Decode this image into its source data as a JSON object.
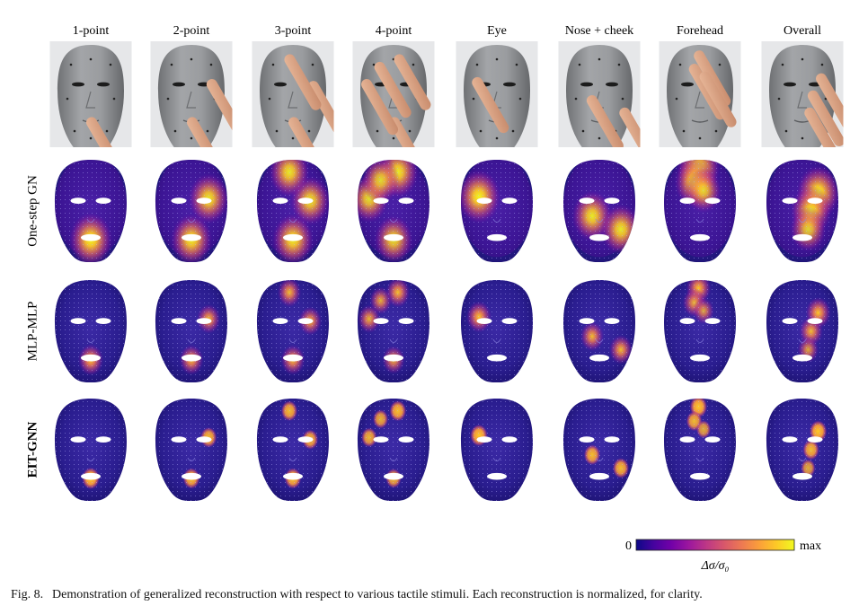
{
  "columns": [
    "1-point",
    "2-point",
    "3-point",
    "4-point",
    "Eye",
    "Nose + cheek",
    "Forehead",
    "Overall"
  ],
  "rows": [
    {
      "label": "One-step GN",
      "bold": false,
      "spot_style": "diffuse"
    },
    {
      "label": "MLP-MLP",
      "bold": false,
      "spot_style": "medium"
    },
    {
      "label": "EIT-GNN",
      "bold": true,
      "spot_style": "sharp"
    }
  ],
  "stimuli": [
    {
      "name": "1-point",
      "spots": [
        {
          "fx": 0.5,
          "fy": 0.78,
          "strength": 1.0
        }
      ]
    },
    {
      "name": "2-point",
      "spots": [
        {
          "fx": 0.5,
          "fy": 0.78,
          "strength": 0.9
        },
        {
          "fx": 0.74,
          "fy": 0.38,
          "strength": 0.85
        }
      ]
    },
    {
      "name": "3-point",
      "spots": [
        {
          "fx": 0.5,
          "fy": 0.78,
          "strength": 0.9
        },
        {
          "fx": 0.74,
          "fy": 0.4,
          "strength": 0.8
        },
        {
          "fx": 0.45,
          "fy": 0.12,
          "strength": 0.85
        }
      ]
    },
    {
      "name": "4-point",
      "spots": [
        {
          "fx": 0.5,
          "fy": 0.78,
          "strength": 0.75
        },
        {
          "fx": 0.16,
          "fy": 0.38,
          "strength": 0.75
        },
        {
          "fx": 0.56,
          "fy": 0.12,
          "strength": 0.9
        },
        {
          "fx": 0.32,
          "fy": 0.2,
          "strength": 0.7
        }
      ]
    },
    {
      "name": "Eye",
      "spots": [
        {
          "fx": 0.25,
          "fy": 0.36,
          "strength": 1.0
        }
      ]
    },
    {
      "name": "Nose + cheek",
      "spots": [
        {
          "fx": 0.4,
          "fy": 0.55,
          "strength": 0.85
        },
        {
          "fx": 0.8,
          "fy": 0.68,
          "strength": 0.85
        }
      ]
    },
    {
      "name": "Forehead",
      "spots": [
        {
          "fx": 0.48,
          "fy": 0.08,
          "strength": 1.0
        },
        {
          "fx": 0.42,
          "fy": 0.22,
          "strength": 0.8
        },
        {
          "fx": 0.55,
          "fy": 0.3,
          "strength": 0.6
        }
      ]
    },
    {
      "name": "Overall",
      "spots": [
        {
          "fx": 0.72,
          "fy": 0.32,
          "strength": 1.0
        },
        {
          "fx": 0.62,
          "fy": 0.5,
          "strength": 0.85
        },
        {
          "fx": 0.58,
          "fy": 0.68,
          "strength": 0.6
        }
      ]
    }
  ],
  "colorbar": {
    "min_label": "0",
    "max_label": "max",
    "quantity_label": "Δσ/σ₀",
    "colors": [
      "#0d0887",
      "#46039f",
      "#7201a8",
      "#9c179e",
      "#bd3786",
      "#d8576b",
      "#ed7953",
      "#fb9f3a",
      "#fdca26",
      "#f0f921"
    ]
  },
  "caption": {
    "figure_number": "Fig. 8.",
    "text": "Demonstration of generalized reconstruction with respect to various tactile stimuli. Each reconstruction is normalized, for clarity."
  },
  "colors": {
    "photo_background": "#e6e7e9",
    "mask_gray": "#8c8e91",
    "skin": "#d9a384",
    "face_base": "#2a1d8f"
  }
}
